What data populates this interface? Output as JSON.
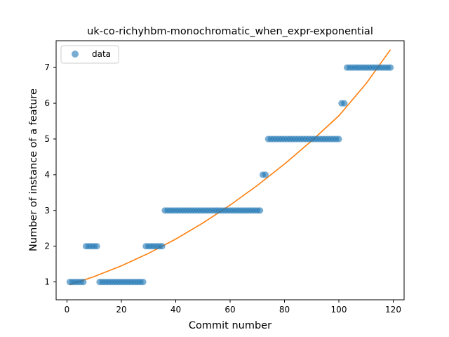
{
  "chart_data": {
    "type": "scatter",
    "title": "uk-co-richyhbm-monochromatic_when_expr-exponential",
    "xlabel": "Commit number",
    "ylabel": "Number of instance of a feature",
    "xlim": [
      -4,
      124
    ],
    "ylim": [
      0.5,
      7.75
    ],
    "xticks": [
      0,
      20,
      40,
      60,
      80,
      100,
      120
    ],
    "yticks": [
      1,
      2,
      3,
      4,
      5,
      6,
      7
    ],
    "grid": false,
    "legend": {
      "placement": "top-left",
      "entries": [
        "data"
      ]
    },
    "colors": {
      "points": "#1f77b4",
      "fit": "#ff7f0e"
    },
    "series": [
      {
        "name": "data",
        "kind": "scatter",
        "points": [
          [
            1,
            1
          ],
          [
            2,
            1
          ],
          [
            3,
            1
          ],
          [
            4,
            1
          ],
          [
            5,
            1
          ],
          [
            6,
            1
          ],
          [
            7,
            2
          ],
          [
            8,
            2
          ],
          [
            9,
            2
          ],
          [
            10,
            2
          ],
          [
            11,
            2
          ],
          [
            12,
            1
          ],
          [
            13,
            1
          ],
          [
            14,
            1
          ],
          [
            15,
            1
          ],
          [
            16,
            1
          ],
          [
            17,
            1
          ],
          [
            18,
            1
          ],
          [
            19,
            1
          ],
          [
            20,
            1
          ],
          [
            21,
            1
          ],
          [
            22,
            1
          ],
          [
            23,
            1
          ],
          [
            24,
            1
          ],
          [
            25,
            1
          ],
          [
            26,
            1
          ],
          [
            27,
            1
          ],
          [
            28,
            1
          ],
          [
            29,
            2
          ],
          [
            30,
            2
          ],
          [
            31,
            2
          ],
          [
            32,
            2
          ],
          [
            33,
            2
          ],
          [
            34,
            2
          ],
          [
            35,
            2
          ],
          [
            36,
            3
          ],
          [
            37,
            3
          ],
          [
            38,
            3
          ],
          [
            39,
            3
          ],
          [
            40,
            3
          ],
          [
            41,
            3
          ],
          [
            42,
            3
          ],
          [
            43,
            3
          ],
          [
            44,
            3
          ],
          [
            45,
            3
          ],
          [
            46,
            3
          ],
          [
            47,
            3
          ],
          [
            48,
            3
          ],
          [
            49,
            3
          ],
          [
            50,
            3
          ],
          [
            51,
            3
          ],
          [
            52,
            3
          ],
          [
            53,
            3
          ],
          [
            54,
            3
          ],
          [
            55,
            3
          ],
          [
            56,
            3
          ],
          [
            57,
            3
          ],
          [
            58,
            3
          ],
          [
            59,
            3
          ],
          [
            60,
            3
          ],
          [
            61,
            3
          ],
          [
            62,
            3
          ],
          [
            63,
            3
          ],
          [
            64,
            3
          ],
          [
            65,
            3
          ],
          [
            66,
            3
          ],
          [
            67,
            3
          ],
          [
            68,
            3
          ],
          [
            69,
            3
          ],
          [
            70,
            3
          ],
          [
            71,
            3
          ],
          [
            72,
            4
          ],
          [
            73,
            4
          ],
          [
            74,
            5
          ],
          [
            75,
            5
          ],
          [
            76,
            5
          ],
          [
            77,
            5
          ],
          [
            78,
            5
          ],
          [
            79,
            5
          ],
          [
            80,
            5
          ],
          [
            81,
            5
          ],
          [
            82,
            5
          ],
          [
            83,
            5
          ],
          [
            84,
            5
          ],
          [
            85,
            5
          ],
          [
            86,
            5
          ],
          [
            87,
            5
          ],
          [
            88,
            5
          ],
          [
            89,
            5
          ],
          [
            90,
            5
          ],
          [
            91,
            5
          ],
          [
            92,
            5
          ],
          [
            93,
            5
          ],
          [
            94,
            5
          ],
          [
            95,
            5
          ],
          [
            96,
            5
          ],
          [
            97,
            5
          ],
          [
            98,
            5
          ],
          [
            99,
            5
          ],
          [
            100,
            5
          ],
          [
            101,
            6
          ],
          [
            102,
            6
          ],
          [
            103,
            7
          ],
          [
            104,
            7
          ],
          [
            105,
            7
          ],
          [
            106,
            7
          ],
          [
            107,
            7
          ],
          [
            108,
            7
          ],
          [
            109,
            7
          ],
          [
            110,
            7
          ],
          [
            111,
            7
          ],
          [
            112,
            7
          ],
          [
            113,
            7
          ],
          [
            114,
            7
          ],
          [
            115,
            7
          ],
          [
            116,
            7
          ],
          [
            117,
            7
          ],
          [
            118,
            7
          ],
          [
            119,
            7
          ]
        ]
      },
      {
        "kind": "line",
        "points": [
          [
            1,
            0.92
          ],
          [
            10,
            1.15
          ],
          [
            20,
            1.45
          ],
          [
            30,
            1.8
          ],
          [
            40,
            2.2
          ],
          [
            50,
            2.65
          ],
          [
            60,
            3.15
          ],
          [
            70,
            3.7
          ],
          [
            80,
            4.3
          ],
          [
            90,
            4.95
          ],
          [
            100,
            5.65
          ],
          [
            110,
            6.55
          ],
          [
            119,
            7.5
          ]
        ]
      }
    ]
  }
}
